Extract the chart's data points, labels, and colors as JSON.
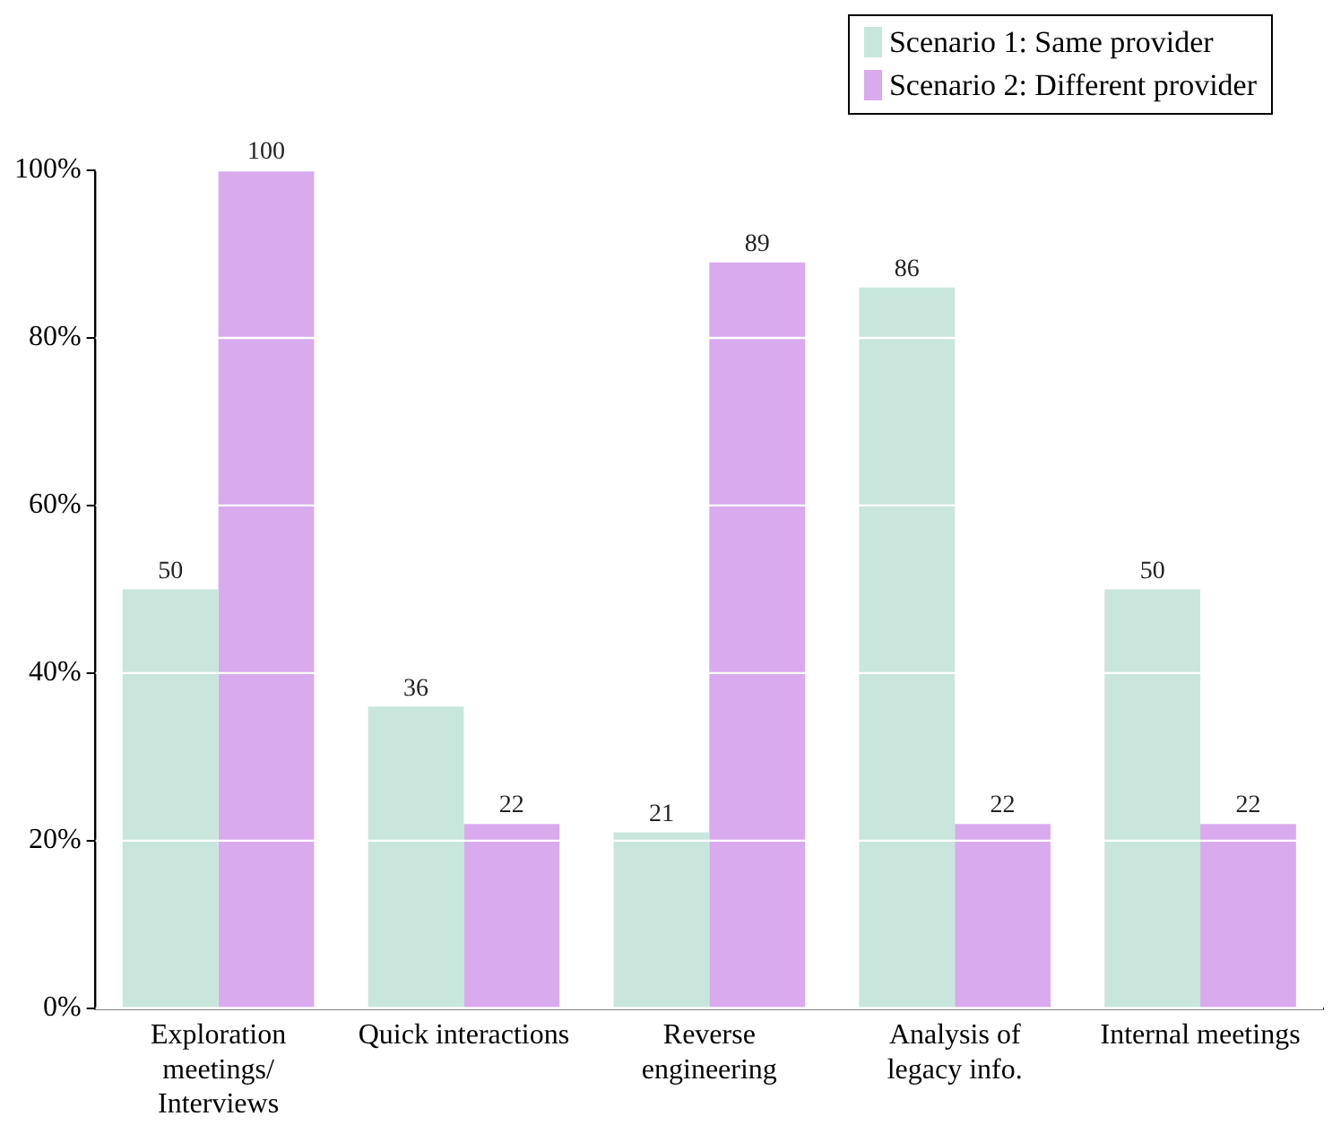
{
  "chart_data": {
    "type": "bar",
    "categories": [
      "Exploration meetings/ Interviews",
      "Quick interactions",
      "Reverse engineering",
      "Analysis of legacy info.",
      "Internal meetings"
    ],
    "series": [
      {
        "name": "Scenario 1: Same provider",
        "color": "#c8e6dc",
        "values": [
          50,
          36,
          21,
          86,
          50
        ]
      },
      {
        "name": "Scenario 2: Different provider",
        "color": "#d9aaee",
        "values": [
          100,
          22,
          89,
          22,
          22
        ]
      }
    ],
    "ylim": [
      0,
      100
    ],
    "yticks": [
      {
        "value": 0,
        "label": "0%"
      },
      {
        "value": 20,
        "label": "20%"
      },
      {
        "value": 40,
        "label": "40%"
      },
      {
        "value": 60,
        "label": "60%"
      },
      {
        "value": 80,
        "label": "80%"
      },
      {
        "value": 100,
        "label": "100%"
      }
    ],
    "grid": "y",
    "legend": "top right",
    "data_labels": true
  }
}
